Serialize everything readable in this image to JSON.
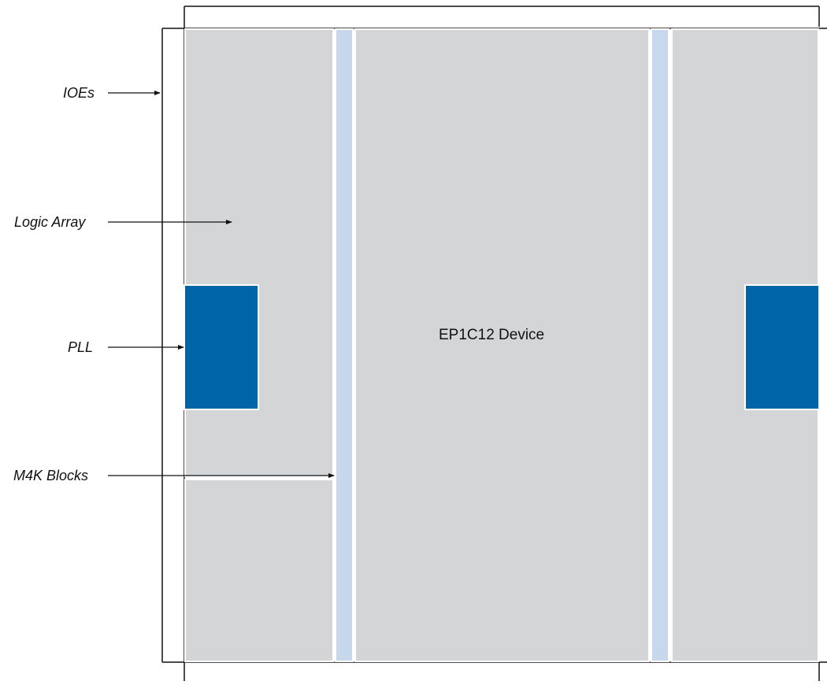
{
  "title": "EP1C12 Device",
  "labels": {
    "ioes": "IOEs",
    "logic_array": "Logic Array",
    "pll": "PLL",
    "m4k_blocks": "M4K Blocks"
  },
  "colors": {
    "logic_array": "#d4d5d7",
    "m4k_block": "#c7d8ec",
    "pll": "#0065a8",
    "outline": "#111111",
    "block_border": "#ffffff"
  }
}
